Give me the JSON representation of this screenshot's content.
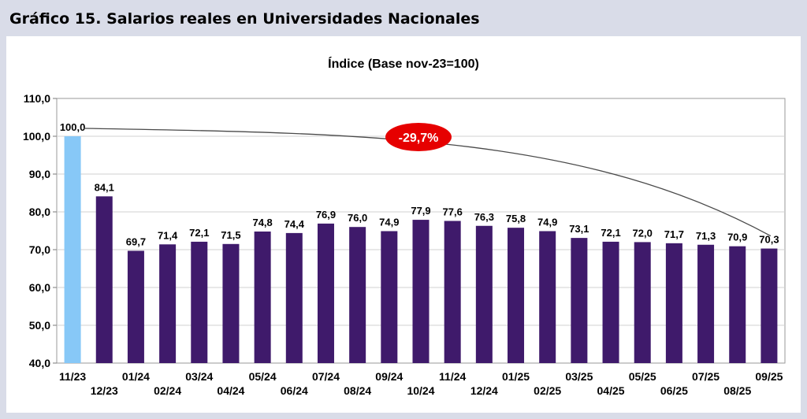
{
  "figure_title": "Gráfico 15. Salarios reales en Universidades Nacionales",
  "chart_data": {
    "type": "bar",
    "title": "Índice (Base nov-23=100)",
    "xlabel": "",
    "ylabel": "",
    "ylim": [
      40,
      110
    ],
    "yticks": [
      "40,0",
      "50,0",
      "60,0",
      "70,0",
      "80,0",
      "90,0",
      "100,0",
      "110,0"
    ],
    "grid": true,
    "categories": [
      "11/23",
      "12/23",
      "01/24",
      "02/24",
      "03/24",
      "04/24",
      "05/24",
      "06/24",
      "07/24",
      "08/24",
      "09/24",
      "10/24",
      "11/24",
      "12/24",
      "01/25",
      "02/25",
      "03/25",
      "04/25",
      "05/25",
      "06/25",
      "07/25",
      "08/25",
      "09/25"
    ],
    "values": [
      100.0,
      84.1,
      69.7,
      71.4,
      72.1,
      71.5,
      74.8,
      74.4,
      76.9,
      76.0,
      74.9,
      77.9,
      77.6,
      76.3,
      75.8,
      74.9,
      73.1,
      72.1,
      72.0,
      71.7,
      71.3,
      70.9,
      70.3
    ],
    "value_labels": [
      "100,0",
      "84,1",
      "69,7",
      "71,4",
      "72,1",
      "71,5",
      "74,8",
      "74,4",
      "76,9",
      "76,0",
      "74,9",
      "77,9",
      "77,6",
      "76,3",
      "75,8",
      "74,9",
      "73,1",
      "72,1",
      "72,0",
      "71,7",
      "71,3",
      "70,9",
      "70,3"
    ],
    "colors": {
      "base": "#87c8f7",
      "bars": "#3f1a6b",
      "grid": "#d0d0d0",
      "badge": "#e60000"
    },
    "annotation": {
      "label": "-29,7%",
      "from_category": "11/23",
      "to_category": "09/25"
    }
  }
}
